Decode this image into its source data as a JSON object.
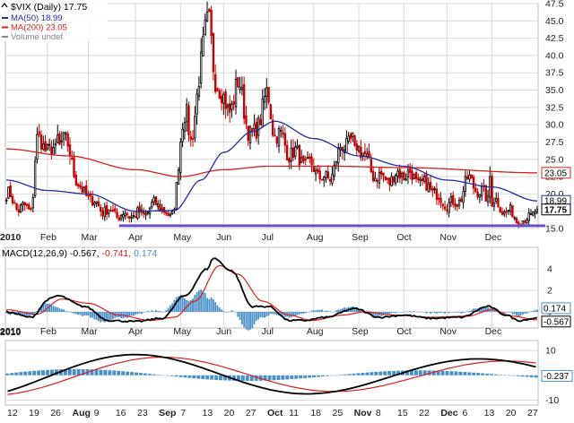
{
  "colors": {
    "grid": "#d9d9d9",
    "axis": "#444444",
    "up": "#000000",
    "down": "#cc0000",
    "ma50": "#1f2f9b",
    "ma200": "#d42020",
    "macd_line": "#000000",
    "signal_line": "#d42020",
    "histogram": "#4a90c8",
    "support_line": "#6d4fc2",
    "badge_ma200": "#d42020",
    "badge_ma50": "#1f2f9b",
    "badge_price": "#000000"
  },
  "chart_data": [
    {
      "type": "candlestick",
      "title": "$VIX (Daily) 17.75",
      "legend": [
        {
          "label": "MA(50) 18.99",
          "color": "#1f2f9b"
        },
        {
          "label": "MA(200) 23.05",
          "color": "#d42020"
        },
        {
          "label": "Volume undef",
          "color": "#888888"
        }
      ],
      "ylim": [
        15,
        47.5
      ],
      "yticks": [
        15.0,
        17.5,
        20.0,
        22.5,
        25.0,
        27.5,
        30.0,
        32.5,
        35.0,
        37.5,
        40.0,
        42.5,
        45.0,
        47.5
      ],
      "ytick_labels": [
        "15.0",
        "17.5",
        "20.0",
        "22.5",
        "25.0",
        "27.5",
        "30.0",
        "32.5",
        "35.0",
        "37.5",
        "40.0",
        "42.5",
        "45.0",
        "47.5"
      ],
      "x_month_labels": [
        "2010",
        "Feb",
        "Mar",
        "Apr",
        "May",
        "Jun",
        "Jul",
        "Aug",
        "Sep",
        "Oct",
        "Nov",
        "Dec"
      ],
      "price_anchors": [
        [
          "2010-01-04",
          20.0
        ],
        [
          "2010-01-12",
          18.0
        ],
        [
          "2010-01-20",
          17.8
        ],
        [
          "2010-01-25",
          27.5
        ],
        [
          "2010-02-05",
          26.0
        ],
        [
          "2010-02-10",
          28.0
        ],
        [
          "2010-02-25",
          20.0
        ],
        [
          "2010-03-10",
          17.8
        ],
        [
          "2010-03-22",
          17.0
        ],
        [
          "2010-04-05",
          17.0
        ],
        [
          "2010-04-16",
          18.5
        ],
        [
          "2010-04-26",
          16.5
        ],
        [
          "2010-05-06",
          32.0
        ],
        [
          "2010-05-10",
          28.0
        ],
        [
          "2010-05-20",
          45.0
        ],
        [
          "2010-05-26",
          37.0
        ],
        [
          "2010-06-03",
          32.0
        ],
        [
          "2010-06-10",
          35.5
        ],
        [
          "2010-06-20",
          28.0
        ],
        [
          "2010-06-30",
          34.0
        ],
        [
          "2010-07-06",
          29.0
        ],
        [
          "2010-07-16",
          26.0
        ],
        [
          "2010-07-29",
          24.0
        ],
        [
          "2010-08-10",
          22.0
        ],
        [
          "2010-08-24",
          27.5
        ],
        [
          "2010-09-01",
          27.0
        ],
        [
          "2010-09-10",
          23.0
        ],
        [
          "2010-09-20",
          22.0
        ],
        [
          "2010-10-01",
          23.0
        ],
        [
          "2010-10-19",
          21.0
        ],
        [
          "2010-10-28",
          19.0
        ],
        [
          "2010-11-05",
          18.5
        ],
        [
          "2010-11-16",
          22.0
        ],
        [
          "2010-11-24",
          20.0
        ],
        [
          "2010-12-01",
          19.0
        ],
        [
          "2010-12-10",
          17.5
        ],
        [
          "2010-12-22",
          16.0
        ],
        [
          "2010-12-31",
          17.75
        ]
      ],
      "spike_anchors": [
        [
          "2010-05-20",
          47.8
        ],
        [
          "2010-02-08",
          30.0
        ],
        [
          "2010-11-30",
          24.0
        ],
        [
          "2010-08-30",
          28.5
        ]
      ],
      "ma50_anchors": [
        [
          "2010-01-04",
          22.0
        ],
        [
          "2010-02-01",
          20.5
        ],
        [
          "2010-03-01",
          20.0
        ],
        [
          "2010-04-01",
          17.5
        ],
        [
          "2010-04-28",
          17.6
        ],
        [
          "2010-05-15",
          22.0
        ],
        [
          "2010-06-01",
          26.0
        ],
        [
          "2010-06-20",
          29.0
        ],
        [
          "2010-07-06",
          30.5
        ],
        [
          "2010-08-01",
          28.0
        ],
        [
          "2010-09-01",
          25.5
        ],
        [
          "2010-10-01",
          24.0
        ],
        [
          "2010-11-01",
          22.0
        ],
        [
          "2010-12-01",
          21.0
        ],
        [
          "2010-12-31",
          18.99
        ]
      ],
      "ma200_anchors": [
        [
          "2010-01-04",
          26.5
        ],
        [
          "2010-02-15",
          25.5
        ],
        [
          "2010-04-01",
          23.5
        ],
        [
          "2010-05-01",
          22.5
        ],
        [
          "2010-06-01",
          23.5
        ],
        [
          "2010-07-01",
          24.0
        ],
        [
          "2010-08-15",
          24.0
        ],
        [
          "2010-10-01",
          23.8
        ],
        [
          "2010-12-31",
          23.05
        ]
      ],
      "support_line": 15.4,
      "badges": [
        {
          "label": "23.05",
          "value": 23.05,
          "key": "badge_ma200"
        },
        {
          "label": "18.99",
          "value": 18.99,
          "key": "badge_ma50"
        },
        {
          "label": "17.75",
          "value": 17.75,
          "key": "badge_price"
        }
      ]
    },
    {
      "type": "macd",
      "title": "MACD(12,26,9) -0.567, -0.741, 0.174",
      "title_parts": {
        "name": "MACD(12,26,9)",
        "macd": "-0.567,",
        "signal": "-0.741,",
        "hist": "0.174"
      },
      "ylim": [
        -1.5,
        6.0
      ],
      "yticks": [
        0,
        2,
        4
      ],
      "ytick_labels": [
        "0",
        "2",
        "4"
      ],
      "x_month_labels": [
        "2010",
        "Feb",
        "Mar",
        "Apr",
        "May",
        "Jun",
        "Jul",
        "Aug",
        "Sep",
        "Oct",
        "Nov",
        "Dec"
      ],
      "macd_anchors": [
        [
          "2010-01-04",
          0.0
        ],
        [
          "2010-01-20",
          -0.5
        ],
        [
          "2010-02-02",
          1.2
        ],
        [
          "2010-02-08",
          1.5
        ],
        [
          "2010-02-25",
          0.5
        ],
        [
          "2010-03-15",
          -0.8
        ],
        [
          "2010-04-01",
          -0.9
        ],
        [
          "2010-04-20",
          -0.6
        ],
        [
          "2010-05-05",
          1.5
        ],
        [
          "2010-05-20",
          4.0
        ],
        [
          "2010-05-25",
          5.0
        ],
        [
          "2010-06-05",
          3.8
        ],
        [
          "2010-06-20",
          0.5
        ],
        [
          "2010-07-01",
          0.5
        ],
        [
          "2010-07-15",
          -0.8
        ],
        [
          "2010-07-25",
          -0.8
        ],
        [
          "2010-08-10",
          -0.5
        ],
        [
          "2010-08-30",
          0.3
        ],
        [
          "2010-09-15",
          -0.5
        ],
        [
          "2010-10-01",
          -0.3
        ],
        [
          "2010-10-20",
          -0.6
        ],
        [
          "2010-11-10",
          -0.5
        ],
        [
          "2010-11-28",
          0.5
        ],
        [
          "2010-12-10",
          -0.3
        ],
        [
          "2010-12-20",
          -0.8
        ],
        [
          "2010-12-31",
          -0.567
        ]
      ],
      "signal_anchors": [
        [
          "2010-01-04",
          0.2
        ],
        [
          "2010-01-25",
          -0.2
        ],
        [
          "2010-02-10",
          1.2
        ],
        [
          "2010-02-28",
          0.8
        ],
        [
          "2010-03-20",
          -0.3
        ],
        [
          "2010-04-10",
          -0.8
        ],
        [
          "2010-04-28",
          -0.5
        ],
        [
          "2010-05-12",
          1.0
        ],
        [
          "2010-05-28",
          4.3
        ],
        [
          "2010-06-10",
          3.5
        ],
        [
          "2010-06-28",
          1.0
        ],
        [
          "2010-07-15",
          -0.3
        ],
        [
          "2010-07-30",
          -0.8
        ],
        [
          "2010-08-20",
          -0.3
        ],
        [
          "2010-09-05",
          0.0
        ],
        [
          "2010-09-25",
          -0.3
        ],
        [
          "2010-10-20",
          -0.5
        ],
        [
          "2010-11-15",
          -0.4
        ],
        [
          "2010-12-01",
          0.2
        ],
        [
          "2010-12-15",
          -0.4
        ],
        [
          "2010-12-31",
          -0.741
        ]
      ],
      "badges": [
        {
          "label": "0.174",
          "value": 0.174,
          "key": "histogram"
        },
        {
          "label": "-0.567",
          "value": -0.567,
          "key": "badge_price"
        }
      ]
    },
    {
      "type": "macd",
      "ylim": [
        -12,
        14
      ],
      "yticks": [
        10,
        -10
      ],
      "ytick_labels": [
        "10",
        "-10"
      ],
      "x_tick_labels": [
        "12",
        "19",
        "26",
        "Aug",
        "9",
        "16",
        "23",
        "Sep",
        "7",
        "13",
        "20",
        "27",
        "Oct",
        "11",
        "18",
        "25",
        "Nov",
        "8",
        "15",
        "22",
        "Dec",
        "6",
        "13",
        "20",
        "27"
      ],
      "year_label": "2010",
      "badges": [
        {
          "label": "-0.237",
          "value": -0.237,
          "key": "histogram"
        }
      ]
    }
  ]
}
